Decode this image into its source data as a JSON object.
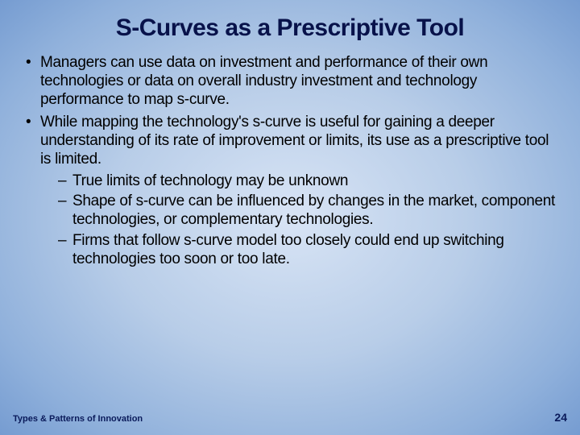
{
  "slide": {
    "title": "S-Curves as a Prescriptive Tool",
    "bullets": [
      {
        "text": "Managers can use data on investment and performance of their own technologies or data on overall industry investment and technology performance to map s-curve."
      },
      {
        "text": "While mapping the technology's s-curve is useful for gaining a deeper understanding of its rate of improvement or limits, its use as a prescriptive tool is limited.",
        "subs": [
          "True limits of technology may be unknown",
          "Shape of s-curve can be influenced by changes in the market, component technologies, or complementary technologies.",
          "Firms that follow s-curve model too closely could end up switching technologies too soon or too late."
        ]
      }
    ],
    "footer_text": "Types & Patterns of Innovation",
    "page_number": "24"
  },
  "style": {
    "title_color": "#08124a",
    "title_fontsize": 30,
    "body_fontsize": 19,
    "footer_fontsize": 11,
    "pagenum_fontsize": 14,
    "background_gradient": {
      "type": "radial",
      "stops": [
        "#d8e4f5",
        "#b8cde8",
        "#8fb0db",
        "#5f8ac8",
        "#3a62a8",
        "#1d3d7a"
      ]
    }
  }
}
